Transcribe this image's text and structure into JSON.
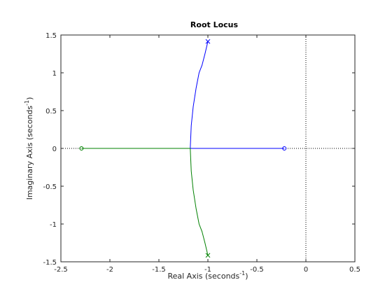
{
  "chart_data": {
    "type": "line",
    "title": "Root Locus",
    "xlabel": [
      "Real Axis (seconds",
      "-1",
      ")"
    ],
    "ylabel": [
      "Imaginary Axis (seconds",
      "-1",
      ")"
    ],
    "xlim": [
      -2.5,
      0.5
    ],
    "ylim": [
      -1.5,
      1.5
    ],
    "xticks": [
      -2.5,
      -2,
      -1.5,
      -1,
      -0.5,
      0,
      0.5
    ],
    "yticks": [
      -1.5,
      -1,
      -0.5,
      0,
      0.5,
      1,
      1.5
    ],
    "zero_lines": true,
    "series": [
      {
        "color": "#0000ff",
        "x": [
          -1,
          -1.03,
          -1.06,
          -1.09,
          -1.12,
          -1.15,
          -1.17,
          -1.18,
          -0.22
        ],
        "y": [
          1.414,
          1.25,
          1.1,
          1.0,
          0.8,
          0.55,
          0.3,
          0,
          0
        ]
      },
      {
        "color": "#008000",
        "x": [
          -1,
          -1.03,
          -1.06,
          -1.09,
          -1.12,
          -1.15,
          -1.17,
          -1.18,
          -2.29
        ],
        "y": [
          -1.414,
          -1.25,
          -1.1,
          -1.0,
          -0.8,
          -0.55,
          -0.3,
          0,
          0
        ]
      }
    ]
  }
}
